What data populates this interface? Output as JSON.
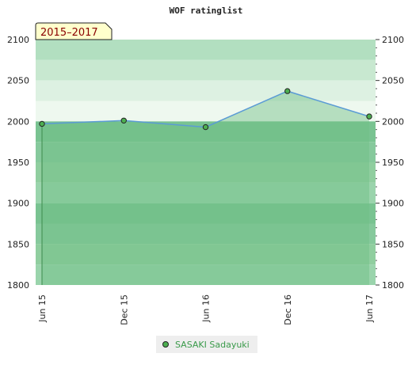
{
  "chart_data": {
    "type": "area",
    "title": "WOF ratinglist",
    "badge": "2015–2017",
    "categories": [
      "Jun 15",
      "Dec 15",
      "Jun 16",
      "Dec 16",
      "Jun 17"
    ],
    "series": [
      {
        "name": "SASAKI Sadayuki",
        "values": [
          1997,
          2001,
          1993,
          2037,
          2006
        ]
      }
    ],
    "y_ticks": [
      1800,
      1850,
      1900,
      1950,
      2000,
      2050,
      2100
    ],
    "y_tick_labels": [
      "1800",
      "1850",
      "1900",
      "1950",
      "2000",
      "2050",
      "2100"
    ],
    "ylim": [
      1800,
      2100
    ],
    "legend_position": "bottom-center",
    "grid": false,
    "colors": {
      "line": "#5b9bd5",
      "area": "#7fc694",
      "marker": "#4caf50",
      "badge_bg": "#ffffcc",
      "band_light": "#eef8ef",
      "band_dark": "#79c391"
    }
  }
}
